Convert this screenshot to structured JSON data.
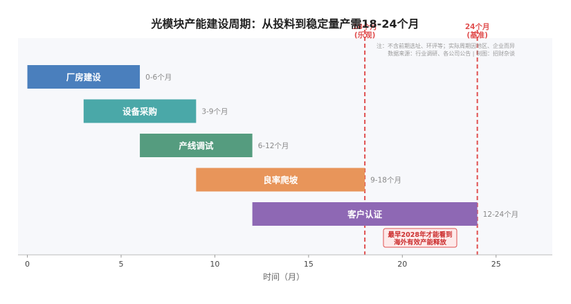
{
  "chart_data": {
    "type": "bar",
    "title": "光模块产能建设周期：从投料到稳定量产需18-24个月",
    "xlabel": "时间（月）",
    "ylabel": "",
    "xlim": [
      -0.5,
      28
    ],
    "x_ticks": [
      0,
      5,
      10,
      15,
      20,
      25
    ],
    "grid": false,
    "orientation": "horizontal",
    "tasks": [
      {
        "name": "厂房建设",
        "start": 0,
        "end": 6,
        "label": "0-6个月",
        "color": "#4a7fbd"
      },
      {
        "name": "设备采购",
        "start": 3,
        "end": 9,
        "label": "3-9个月",
        "color": "#4aa8a8"
      },
      {
        "name": "产线调试",
        "start": 6,
        "end": 12,
        "label": "6-12个月",
        "color": "#559c7f"
      },
      {
        "name": "良率爬坡",
        "start": 9,
        "end": 18,
        "label": "9-18个月",
        "color": "#e8955a"
      },
      {
        "name": "客户认证",
        "start": 12,
        "end": 24,
        "label": "12-24个月",
        "color": "#8e68b4"
      }
    ],
    "reference_lines": [
      {
        "x": 18,
        "label_line1": "18个月",
        "label_line2": "(乐观)",
        "color": "#e04f4f"
      },
      {
        "x": 24,
        "label_line1": "24个月",
        "label_line2": "(基准)",
        "color": "#e04f4f"
      }
    ],
    "annotations": {
      "note_line1": "注：不含前期选址、环评等；实际周期因地区、企业而异",
      "note_line2": "数据来源：行业调研、各公司公告 | 制图：招财杂谈",
      "callout_line1": "最早2028年才能看到",
      "callout_line2": "海外有效产能释放"
    }
  },
  "colors": {
    "reference": "#e04f4f",
    "plot_bg": "#f7f8fb",
    "bar_text": "#ffffff",
    "range_text": "#888888",
    "callout_bg": "#fdeaea",
    "callout_text": "#cc2f2f"
  }
}
